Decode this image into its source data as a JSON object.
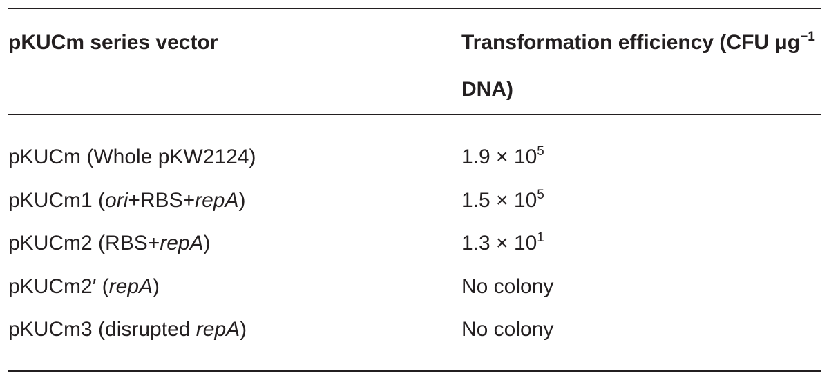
{
  "table": {
    "header": [
      [
        {
          "text": "pKUCm series vector"
        }
      ],
      [
        {
          "text": "Transformation efficiency (CFU μg"
        },
        {
          "text": "−1",
          "sup": true
        },
        {
          "text": " DNA)"
        }
      ]
    ],
    "rows": [
      [
        [
          {
            "text": "pKUCm (Whole pKW2124)"
          }
        ],
        [
          {
            "text": "1.9 × 10"
          },
          {
            "text": "5",
            "sup": true
          }
        ]
      ],
      [
        [
          {
            "text": "pKUCm1 ("
          },
          {
            "text": "ori",
            "italic": true
          },
          {
            "text": "+RBS+"
          },
          {
            "text": "repA",
            "italic": true
          },
          {
            "text": ")"
          }
        ],
        [
          {
            "text": "1.5 × 10"
          },
          {
            "text": "5",
            "sup": true
          }
        ]
      ],
      [
        [
          {
            "text": "pKUCm2 (RBS+"
          },
          {
            "text": "repA",
            "italic": true
          },
          {
            "text": ")"
          }
        ],
        [
          {
            "text": "1.3 × 10"
          },
          {
            "text": "1",
            "sup": true
          }
        ]
      ],
      [
        [
          {
            "text": "pKUCm2′ ("
          },
          {
            "text": "repA",
            "italic": true
          },
          {
            "text": ")"
          }
        ],
        [
          {
            "text": "No colony"
          }
        ]
      ],
      [
        [
          {
            "text": "pKUCm3 (disrupted "
          },
          {
            "text": "repA",
            "italic": true
          },
          {
            "text": ")"
          }
        ],
        [
          {
            "text": "No colony"
          }
        ]
      ]
    ]
  }
}
